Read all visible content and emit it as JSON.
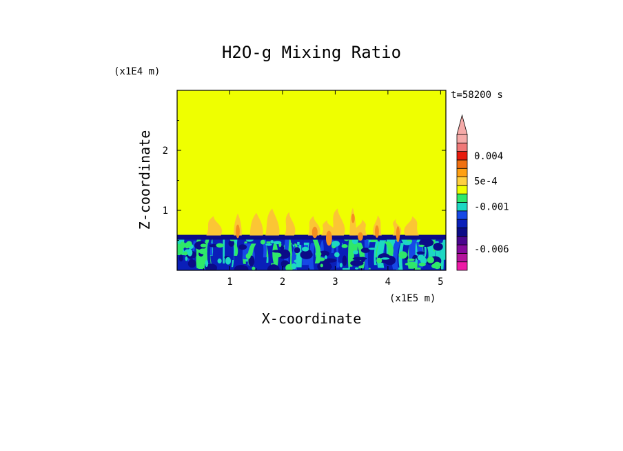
{
  "chart_data": {
    "type": "heatmap",
    "title": "H2O-g Mixing Ratio",
    "xlabel": "X-coordinate",
    "ylabel": "Z-coordinate",
    "x_unit": "(x1E5 m)",
    "y_unit": "(x1E4 m)",
    "time_label": "t=58200 s",
    "xlim": [
      0,
      5.1
    ],
    "ylim": [
      0,
      3
    ],
    "x_ticks": [
      "1",
      "2",
      "3",
      "4",
      "5"
    ],
    "y_ticks": [
      "1",
      "2"
    ],
    "x_tick_values": [
      1,
      2,
      3,
      4,
      5
    ],
    "y_tick_values": [
      1,
      2
    ],
    "boundary_layer_top": 0.58,
    "colorbar": {
      "levels": [
        {
          "value": -0.008,
          "color": "#ee1aa6"
        },
        {
          "value": -0.007,
          "color": "#b4149c"
        },
        {
          "value": -0.006,
          "color": "#860a9c"
        },
        {
          "value": -0.005,
          "color": "#4a068e"
        },
        {
          "value": -0.004,
          "color": "#0b0b87"
        },
        {
          "value": -0.003,
          "color": "#0a1fb9"
        },
        {
          "value": -0.002,
          "color": "#1649e6"
        },
        {
          "value": -0.001,
          "color": "#1dd7c3"
        },
        {
          "value": -0.0005,
          "color": "#2fe86a"
        },
        {
          "value": 0,
          "color": "#efff00"
        },
        {
          "value": 0.0005,
          "color": "#ffd040"
        },
        {
          "value": 0.001,
          "color": "#ffa012"
        },
        {
          "value": 0.002,
          "color": "#f07010"
        },
        {
          "value": 0.004,
          "color": "#e81b0d"
        },
        {
          "value": 0.006,
          "color": "#f07878"
        },
        {
          "value": 0.008,
          "color": "#f5aaa8"
        }
      ],
      "labels": [
        "0.004",
        "5e-4",
        "-0.001",
        "-0.006"
      ],
      "label_values": [
        0.004,
        0.0005,
        -0.001,
        -0.006
      ]
    },
    "background_color": "#efff00",
    "plume_color": "#fbc535",
    "plume_core_color": "#f38d22",
    "field_colors": [
      "#0a1fb9",
      "#1649e6",
      "#1dd7c3",
      "#2fe86a",
      "#0b0b87",
      "#efff00"
    ]
  }
}
